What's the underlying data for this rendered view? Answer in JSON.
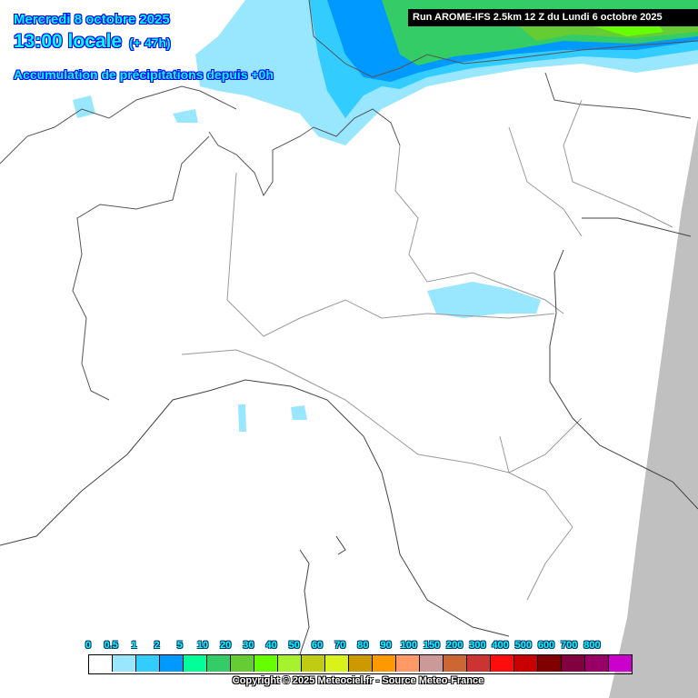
{
  "header": {
    "date": "Mercredi 8 octobre 2025",
    "time": "13:00 locale",
    "lead": "(+ 47h)",
    "product": "Accumulation de précipitations depuis +0h",
    "run": "Run AROME-IFS 2.5km 12 Z du Lundi 6 octobre 2025"
  },
  "legend": {
    "labels": [
      "0",
      "0.5",
      "1",
      "2",
      "5",
      "10",
      "20",
      "30",
      "40",
      "50",
      "60",
      "70",
      "80",
      "90",
      "100",
      "150",
      "200",
      "300",
      "400",
      "500",
      "600",
      "700",
      "800"
    ],
    "colors": [
      "#ffffff",
      "#99e6ff",
      "#33ccff",
      "#0099ff",
      "#00ff99",
      "#33cc66",
      "#66cc33",
      "#66ff00",
      "#a6f22e",
      "#bfcc11",
      "#d9f21a",
      "#cc9900",
      "#ff9900",
      "#ff9966",
      "#cc9999",
      "#cc6633",
      "#cc3333",
      "#ff0d0d",
      "#c80000",
      "#800000",
      "#800040",
      "#990066",
      "#cc00cc"
    ]
  },
  "footer": {
    "copyright": "Copyright © 2025 Meteociel.fr - Source Meteo-France"
  },
  "colors": {
    "out_of_domain": "#c0c0c0",
    "border": "#555555"
  }
}
